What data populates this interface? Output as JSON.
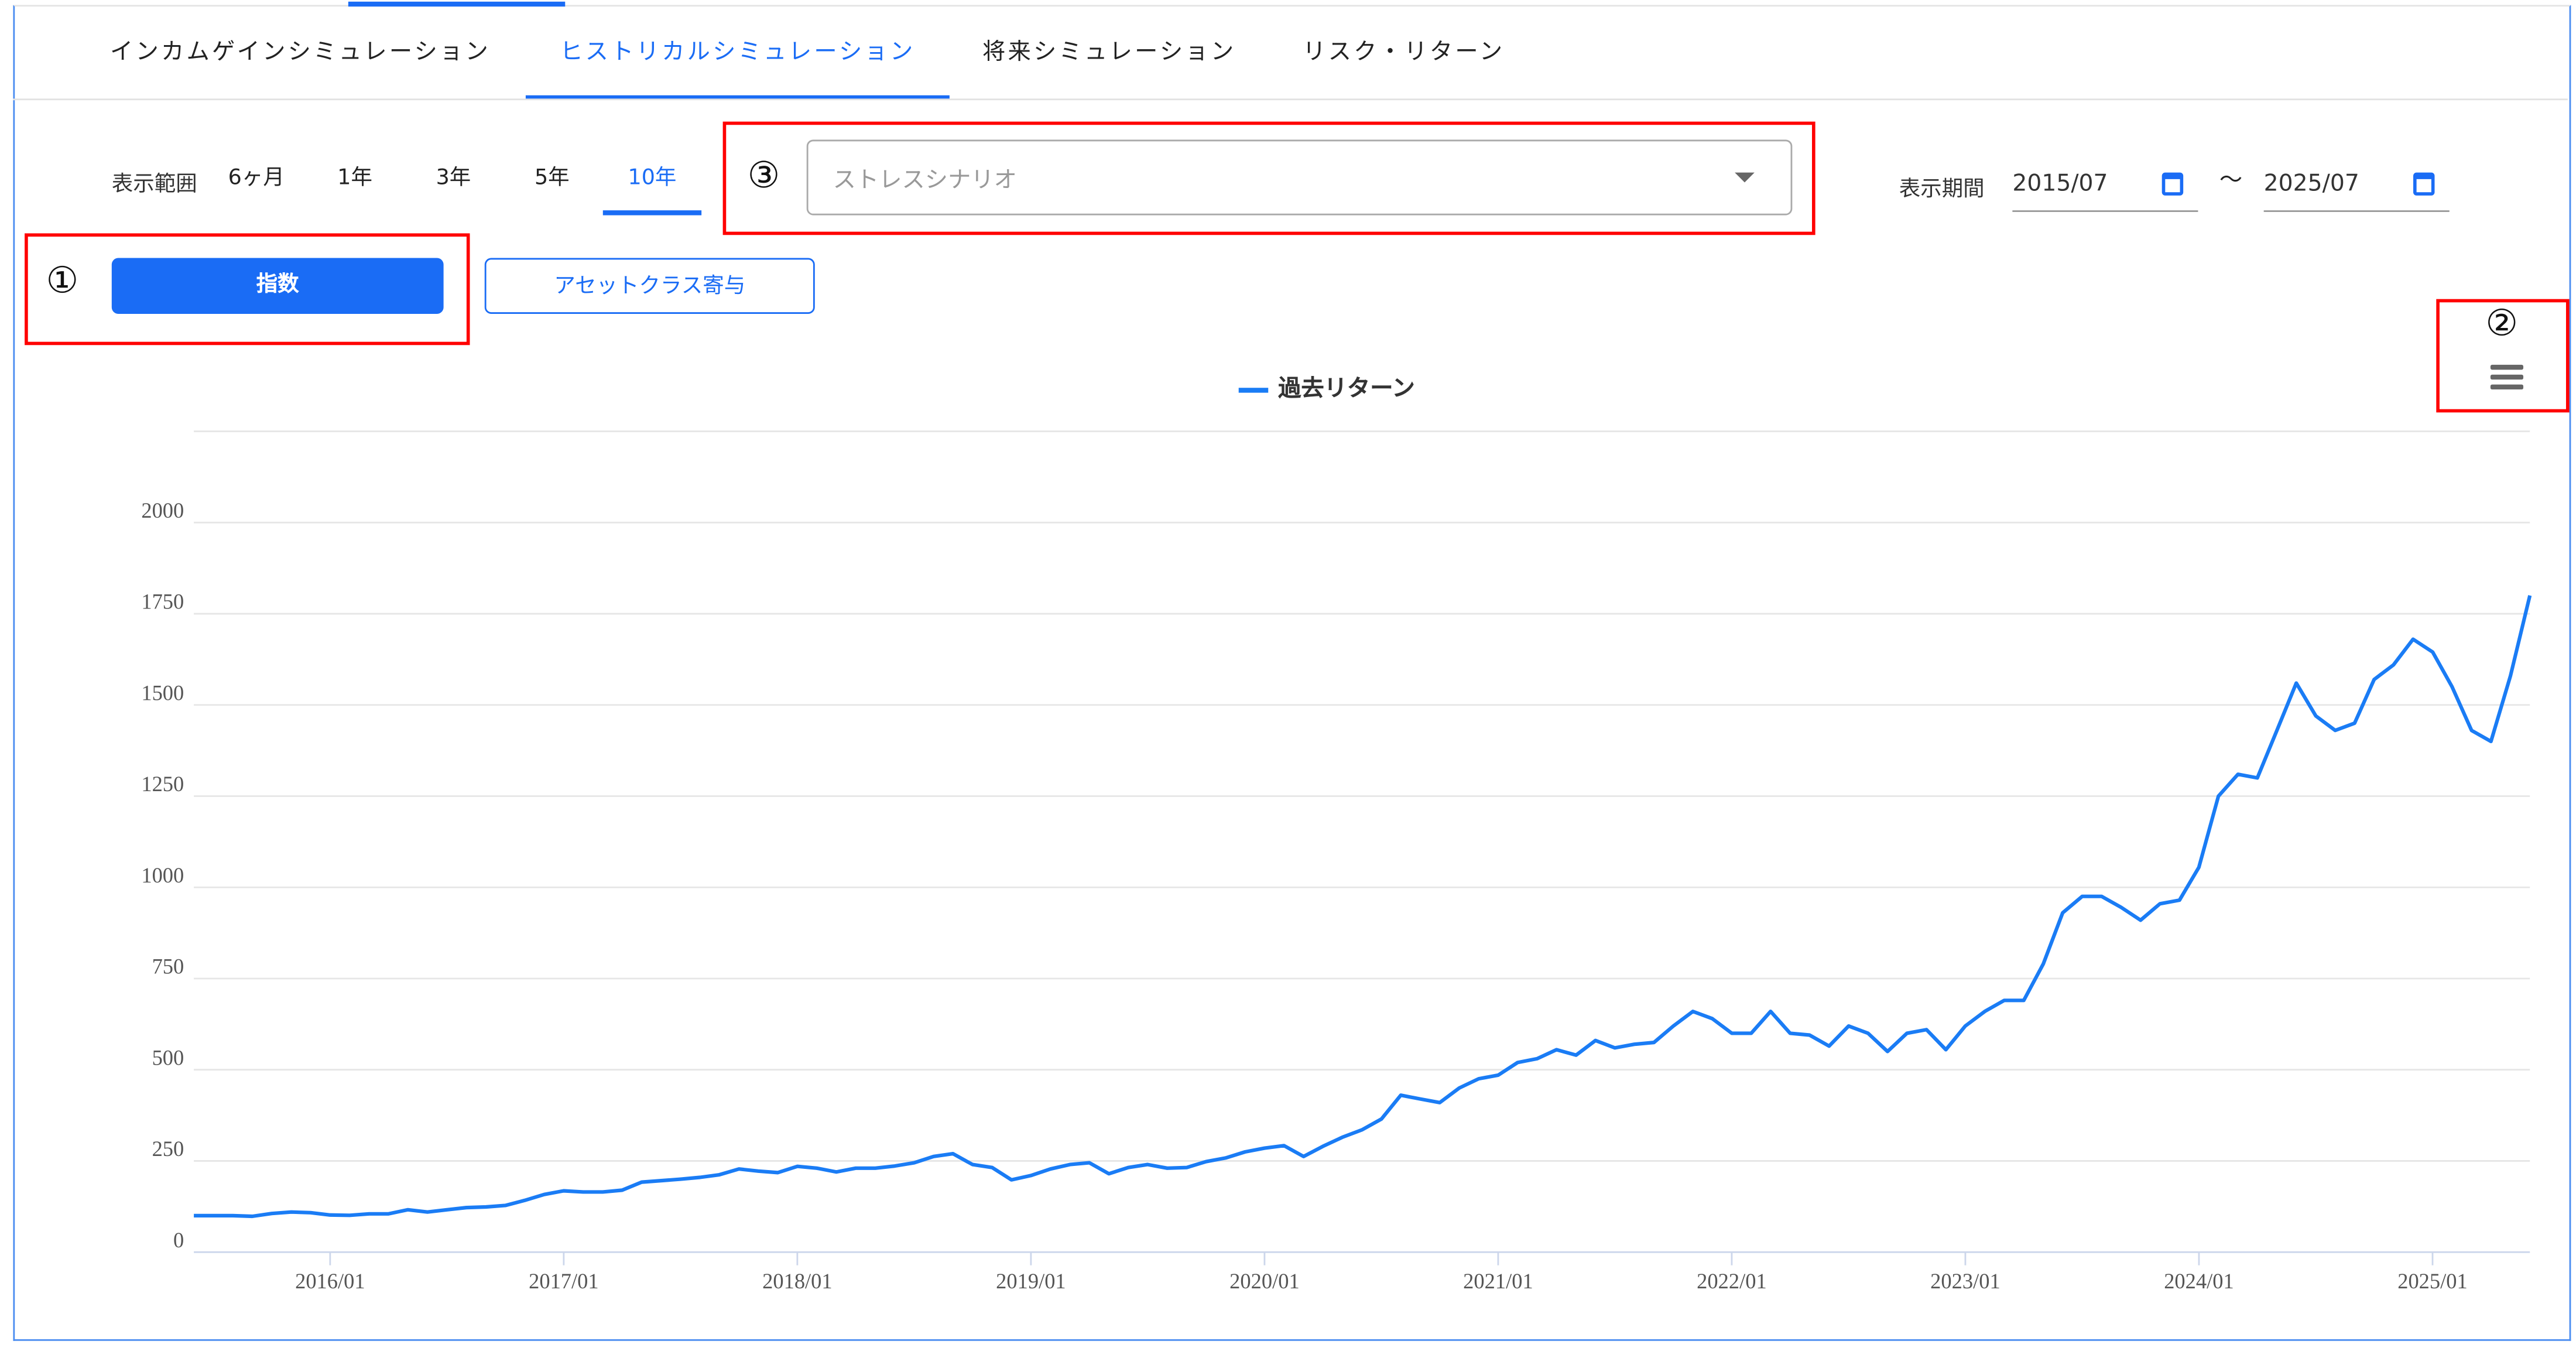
{
  "tabs": [
    {
      "label": "インカムゲインシミュレーション",
      "active": false
    },
    {
      "label": "ヒストリカルシミュレーション",
      "active": true
    },
    {
      "label": "将来シミュレーション",
      "active": false
    },
    {
      "label": "リスク・リターン",
      "active": false
    }
  ],
  "range": {
    "label": "表示範囲",
    "options": [
      "6ヶ月",
      "1年",
      "3年",
      "5年",
      "10年"
    ],
    "selected": "10年"
  },
  "scenario": {
    "placeholder": "ストレスシナリオ"
  },
  "period": {
    "label": "表示期間",
    "from": "2015/07",
    "separator": "〜",
    "to": "2025/07"
  },
  "buttons": {
    "index": "指数",
    "asset_class": "アセットクラス寄与"
  },
  "annotations": [
    "①",
    "②",
    "③"
  ],
  "colors": {
    "accent": "#1a6cf5",
    "line": "#1a7cf5",
    "highlight": "#ff0000"
  },
  "chart_data": {
    "type": "line",
    "series": [
      {
        "name": "過去リターン",
        "start": "2015/06",
        "frequency": "monthly",
        "values": [
          100,
          100,
          100,
          98,
          106,
          110,
          108,
          102,
          101,
          105,
          105,
          116,
          110,
          116,
          122,
          124,
          128,
          142,
          158,
          168,
          165,
          165,
          170,
          192,
          196,
          200,
          205,
          212,
          228,
          222,
          218,
          235,
          230,
          220,
          230,
          230,
          236,
          245,
          262,
          270,
          240,
          232,
          198,
          210,
          228,
          240,
          245,
          215,
          232,
          240,
          230,
          232,
          248,
          258,
          275,
          285,
          292,
          262,
          290,
          315,
          335,
          365,
          430,
          420,
          410,
          450,
          475,
          485,
          520,
          530,
          555,
          540,
          580,
          560,
          570,
          575,
          620,
          660,
          640,
          600,
          600,
          660,
          600,
          595,
          565,
          620,
          600,
          550,
          600,
          610,
          555,
          620,
          660,
          690,
          690,
          790,
          930,
          975,
          975,
          945,
          910,
          955,
          965,
          1055,
          1250,
          1310,
          1300,
          1430,
          1560,
          1470,
          1430,
          1450,
          1570,
          1610,
          1680,
          1645,
          1550,
          1430,
          1400,
          1580,
          1800
        ]
      }
    ],
    "y_ticks": [
      0,
      250,
      500,
      750,
      1000,
      1250,
      1500,
      1750,
      2000
    ],
    "ylim": [
      0,
      2250
    ],
    "x_ticks": [
      "2016/01",
      "2017/01",
      "2018/01",
      "2019/01",
      "2020/01",
      "2021/01",
      "2022/01",
      "2023/01",
      "2024/01",
      "2025/01"
    ],
    "grid": true,
    "legend": "top-center"
  }
}
